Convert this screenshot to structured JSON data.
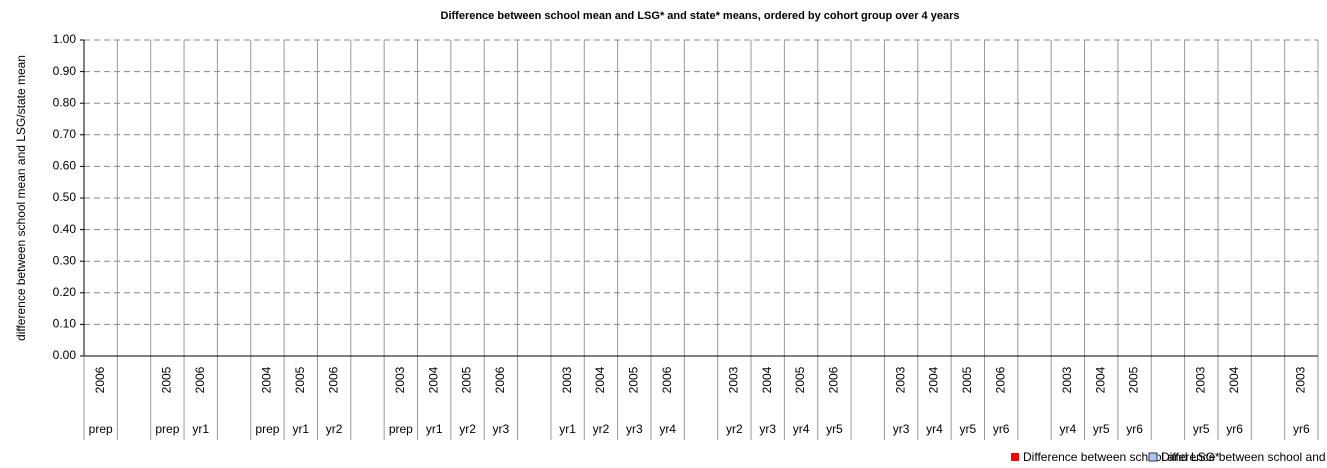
{
  "chart_data": {
    "type": "bar",
    "title": "Difference between school mean and LSG* and state* means, ordered by cohort group over 4 years",
    "y_label": "difference between school mean and LSG/state mean",
    "categories": [
      "2006",
      null,
      "2005",
      "2006",
      null,
      "2004",
      "2005",
      "2006",
      null,
      "2003",
      "2004",
      "2005",
      "2006",
      null,
      "2003",
      "2004",
      "2005",
      "2006",
      null,
      "2003",
      "2004",
      "2005",
      "2006",
      null,
      "2003",
      "2004",
      "2005",
      "2006",
      null,
      "2003",
      "2004",
      "2005",
      null,
      "2003",
      "2004",
      null,
      "2003"
    ],
    "groups": [
      "prep",
      null,
      "prep",
      "yr1",
      null,
      "prep",
      "yr1",
      "yr2",
      null,
      "prep",
      "yr1",
      "yr2",
      "yr3",
      null,
      "yr1",
      "yr2",
      "yr3",
      "yr4",
      null,
      "yr2",
      "yr3",
      "yr4",
      "yr5",
      null,
      "yr3",
      "yr4",
      "yr5",
      "yr6",
      null,
      "yr4",
      "yr5",
      "yr6",
      null,
      "yr5",
      "yr6",
      null,
      "yr6"
    ],
    "series": [
      {
        "name": "Difference between school and LSG*",
        "color": "#ff0000",
        "values": [
          null,
          null,
          null,
          null,
          null,
          null,
          null,
          null,
          null,
          null,
          null,
          null,
          null,
          null,
          null,
          null,
          null,
          null,
          null,
          null,
          null,
          null,
          null,
          null,
          null,
          null,
          null,
          null,
          null,
          null,
          null,
          null,
          null,
          null,
          null,
          null,
          null
        ]
      },
      {
        "name": "Difference between school and state*",
        "color": "#a8c8f0",
        "values": [
          null,
          null,
          null,
          null,
          null,
          null,
          null,
          null,
          null,
          null,
          null,
          null,
          null,
          null,
          null,
          null,
          null,
          null,
          null,
          null,
          null,
          null,
          null,
          null,
          null,
          null,
          null,
          null,
          null,
          null,
          null,
          null,
          null,
          null,
          null,
          null,
          null
        ]
      }
    ],
    "ylim": [
      0,
      1
    ],
    "yticks": [
      {
        "value": 0,
        "label": "0.00"
      },
      {
        "value": 0.1,
        "label": "0.10"
      },
      {
        "value": 0.2,
        "label": "0.20"
      },
      {
        "value": 0.3,
        "label": "0.30"
      },
      {
        "value": 0.4,
        "label": "0.40"
      },
      {
        "value": 0.5,
        "label": "0.50"
      },
      {
        "value": 0.6,
        "label": "0.60"
      },
      {
        "value": 0.7,
        "label": "0.70"
      },
      {
        "value": 0.8,
        "label": "0.80"
      },
      {
        "value": 0.9,
        "label": "0.90"
      },
      {
        "value": 1,
        "label": "1.00"
      }
    ],
    "grid": true,
    "legend": "bottom-right"
  }
}
